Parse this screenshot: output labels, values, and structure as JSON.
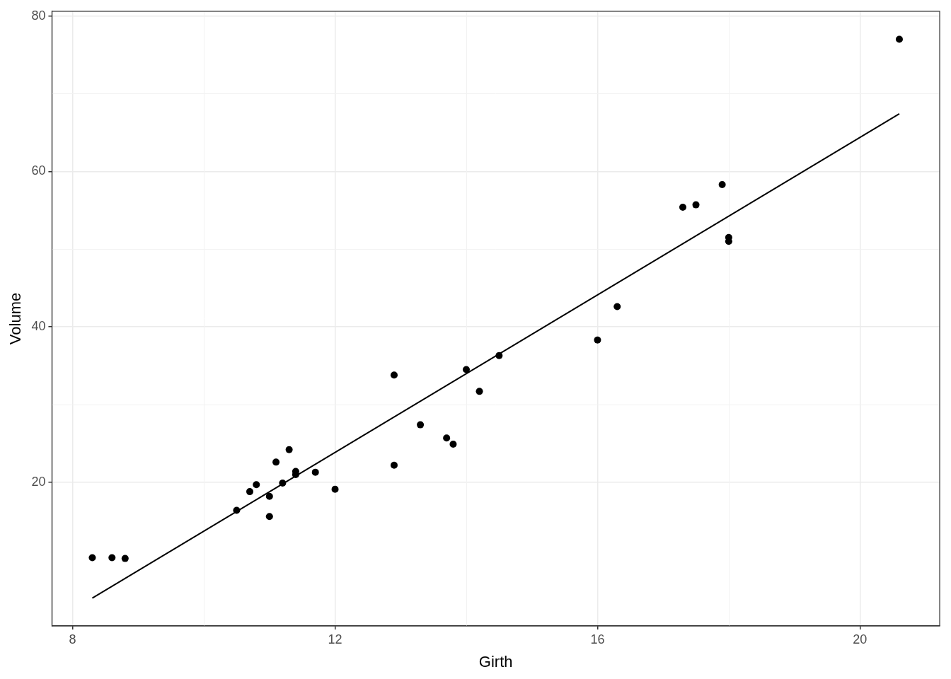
{
  "chart_data": {
    "type": "scatter",
    "x_label": "Girth",
    "y_label": "Volume",
    "series": [
      {
        "type": "scatter",
        "marker": "circle",
        "color": "#000000",
        "x": [
          8.3,
          8.6,
          8.8,
          10.5,
          10.7,
          10.8,
          11.0,
          11.0,
          11.1,
          11.2,
          11.3,
          11.4,
          11.4,
          11.7,
          12.0,
          12.9,
          12.9,
          13.3,
          13.7,
          13.8,
          14.0,
          14.2,
          14.5,
          16.0,
          16.3,
          17.3,
          17.5,
          17.9,
          18.0,
          18.0,
          20.6
        ],
        "values": [
          10.3,
          10.3,
          10.2,
          16.4,
          18.8,
          19.7,
          15.6,
          18.2,
          22.6,
          19.9,
          24.2,
          21.0,
          21.4,
          21.3,
          19.1,
          22.2,
          33.8,
          27.4,
          25.7,
          24.9,
          34.5,
          31.7,
          36.3,
          38.3,
          42.6,
          55.4,
          55.7,
          58.3,
          51.5,
          51.0,
          77.0
        ]
      },
      {
        "type": "line",
        "line_style": "solid",
        "color": "#000000",
        "x": [
          8.3,
          20.6
        ],
        "values": [
          5.11,
          67.42
        ]
      }
    ],
    "xlim": [
      7.685,
      21.215
    ],
    "xticks": [
      8,
      12,
      16,
      20
    ],
    "ylim": [
      1.52,
      80.6
    ],
    "yticks": [
      20,
      40,
      60,
      80
    ],
    "grid": true
  }
}
